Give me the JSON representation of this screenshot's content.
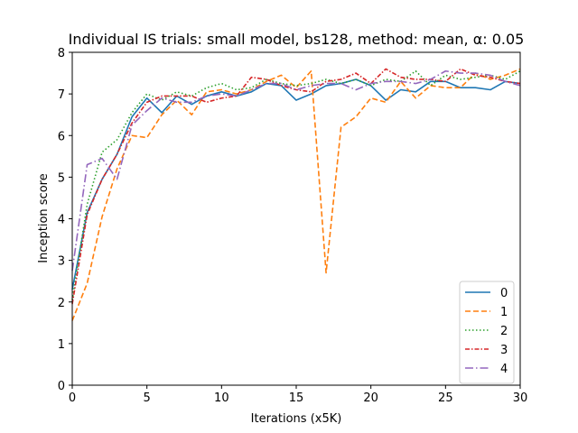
{
  "chart_data": {
    "type": "line",
    "title": "Individual IS trials: small model, bs128, method: mean, α: 0.05",
    "xlabel": "Iterations (x5K)",
    "ylabel": "Inception score",
    "xlim": [
      0,
      30
    ],
    "ylim": [
      0,
      8
    ],
    "xticks": [
      0,
      5,
      10,
      15,
      20,
      25,
      30
    ],
    "yticks": [
      0,
      1,
      2,
      3,
      4,
      5,
      6,
      7,
      8
    ],
    "grid": false,
    "legend_position": "lower right",
    "x": [
      0,
      1,
      2,
      3,
      4,
      5,
      6,
      7,
      8,
      9,
      10,
      11,
      12,
      13,
      14,
      15,
      16,
      17,
      18,
      19,
      20,
      21,
      22,
      23,
      24,
      25,
      26,
      27,
      28,
      29,
      30
    ],
    "series": [
      {
        "name": "0",
        "color": "#1f77b4",
        "style": "solid",
        "values": [
          2.3,
          4.15,
          4.95,
          5.55,
          6.45,
          6.9,
          6.55,
          6.95,
          6.75,
          6.95,
          7.05,
          6.95,
          7.05,
          7.25,
          7.2,
          6.85,
          7.0,
          7.2,
          7.25,
          7.35,
          7.2,
          6.85,
          7.1,
          7.05,
          7.3,
          7.3,
          7.15,
          7.15,
          7.1,
          7.3,
          7.25
        ]
      },
      {
        "name": "1",
        "color": "#ff7f0e",
        "style": "dashed",
        "values": [
          1.55,
          2.45,
          4.05,
          5.2,
          6.0,
          5.95,
          6.5,
          6.85,
          6.5,
          7.05,
          7.1,
          7.0,
          7.1,
          7.3,
          7.45,
          7.15,
          7.55,
          2.7,
          6.2,
          6.45,
          6.9,
          6.8,
          7.3,
          6.9,
          7.2,
          7.15,
          7.15,
          7.5,
          7.35,
          7.45,
          7.6
        ]
      },
      {
        "name": "2",
        "color": "#2ca02c",
        "style": "dotted",
        "values": [
          2.05,
          4.35,
          5.6,
          5.9,
          6.55,
          7.0,
          6.85,
          7.05,
          6.95,
          7.15,
          7.25,
          7.1,
          7.15,
          7.35,
          7.25,
          7.2,
          7.25,
          7.35,
          7.25,
          7.35,
          7.2,
          7.35,
          7.3,
          7.55,
          7.2,
          7.45,
          7.35,
          7.4,
          7.45,
          7.35,
          7.55
        ]
      },
      {
        "name": "3",
        "color": "#d62728",
        "style": "dashdot",
        "values": [
          1.95,
          4.1,
          4.95,
          5.55,
          6.3,
          6.8,
          6.95,
          6.95,
          6.95,
          6.8,
          6.9,
          6.95,
          7.4,
          7.35,
          7.2,
          7.1,
          7.05,
          7.3,
          7.35,
          7.5,
          7.25,
          7.6,
          7.4,
          7.35,
          7.35,
          7.3,
          7.6,
          7.45,
          7.4,
          7.3,
          7.25
        ]
      },
      {
        "name": "4",
        "color": "#9467bd",
        "style": "longdashdot",
        "values": [
          2.75,
          5.3,
          5.45,
          4.95,
          6.25,
          6.6,
          6.9,
          6.8,
          6.8,
          6.95,
          7.0,
          6.95,
          7.1,
          7.25,
          7.25,
          7.1,
          7.2,
          7.25,
          7.25,
          7.1,
          7.25,
          7.3,
          7.3,
          7.25,
          7.35,
          7.55,
          7.5,
          7.5,
          7.45,
          7.3,
          7.2
        ]
      }
    ]
  }
}
